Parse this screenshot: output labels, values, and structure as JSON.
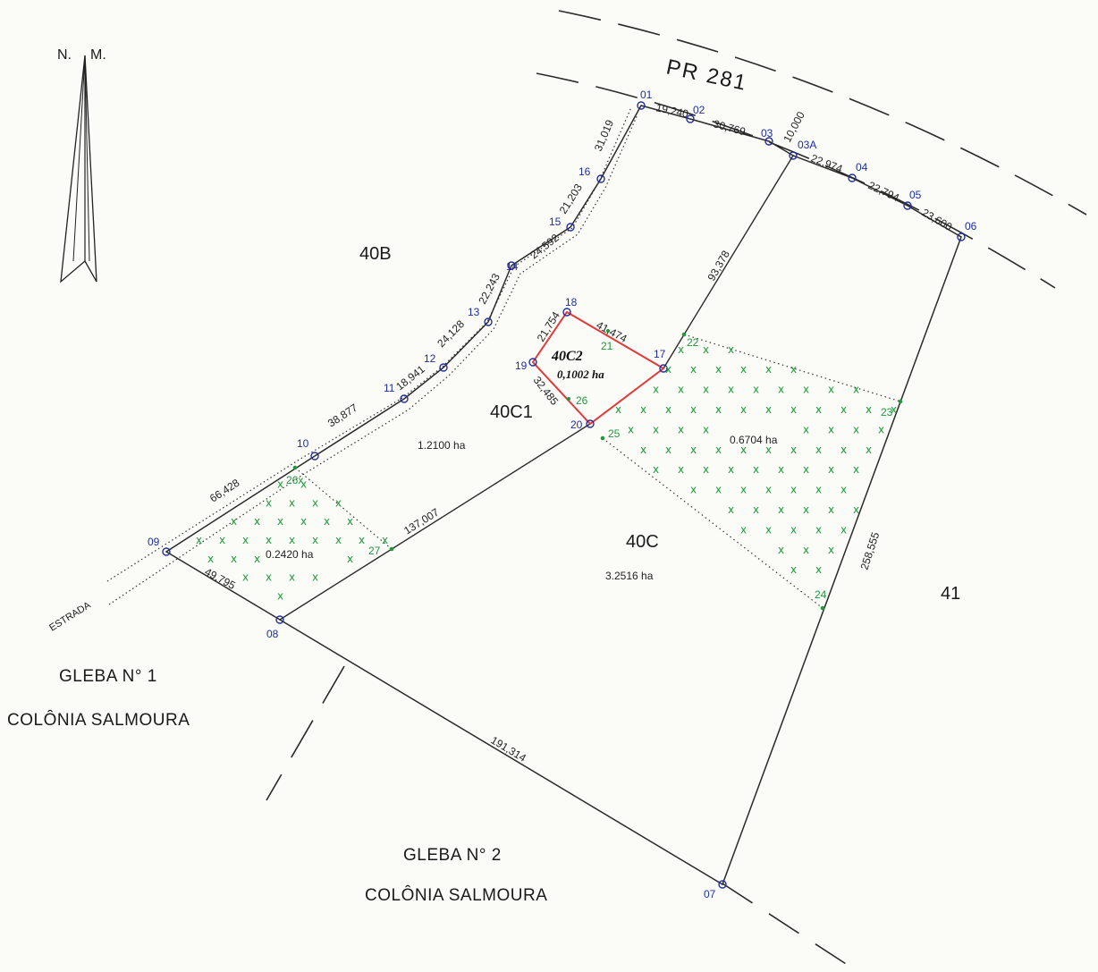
{
  "north_arrow": {
    "label_left": "N.",
    "label_right": "M."
  },
  "road": {
    "name": "PR 281",
    "road_label": "ESTRADA"
  },
  "lots": {
    "lot_40b": {
      "name": "40B"
    },
    "lot_40c1": {
      "name": "40C1",
      "area": "1.2100 ha"
    },
    "lot_40c": {
      "name": "40C",
      "area": "3.2516 ha"
    },
    "lot_40c2": {
      "name": "40C2",
      "area": "0,1002 ha"
    },
    "lot_41": {
      "name": "41"
    },
    "zone_east": {
      "area": "0.6704 ha"
    },
    "zone_west": {
      "area": "0.2420 ha"
    }
  },
  "glebas": {
    "gleba_1": {
      "line1": "GLEBA N° 1",
      "line2": "COLÔNIA SALMOURA"
    },
    "gleba_2": {
      "line1": "GLEBA N° 2",
      "line2": "COLÔNIA SALMOURA"
    }
  },
  "points": {
    "p01": "01",
    "p02": "02",
    "p03": "03",
    "p03a": "03A",
    "p04": "04",
    "p05": "05",
    "p06": "06",
    "p07": "07",
    "p08": "08",
    "p09": "09",
    "p10": "10",
    "p11": "11",
    "p12": "12",
    "p13": "13",
    "p14": "14",
    "p15": "15",
    "p16": "16",
    "p17": "17",
    "p18": "18",
    "p19": "19",
    "p20": "20",
    "p21": "21",
    "p22": "22",
    "p23": "23",
    "p24": "24",
    "p25": "25",
    "p26": "26",
    "p26x": "26x",
    "p27": "27"
  },
  "distances": {
    "d01_02": "19,240",
    "d02_03": "30,769",
    "d03_03a": "10,000",
    "d03a_04": "22,974",
    "d04_05": "22,794",
    "d05_06": "23,600",
    "d06_07": "258,555",
    "d07_08": "191,314",
    "d08_09": "49,795",
    "d09_10": "66,428",
    "d10_11": "38,877",
    "d11_12": "18,941",
    "d12_13": "24,128",
    "d13_14": "22,243",
    "d14_15": "24,592",
    "d15_16": "21,203",
    "d16_01": "31,019",
    "d03a_17": "93,378",
    "d20_08": "137,007",
    "d18_17": "41,474",
    "d18_19": "21,754",
    "d19_20": "32,485"
  },
  "colors": {
    "line": "#2a2a2a",
    "point_marker": "#1f2fa0",
    "point_label_blue": "#1f2fa0",
    "point_label_green": "#1f9a3b",
    "hatch_green": "#1f9a3b",
    "lot_40c2_outline": "#e23a3a"
  }
}
